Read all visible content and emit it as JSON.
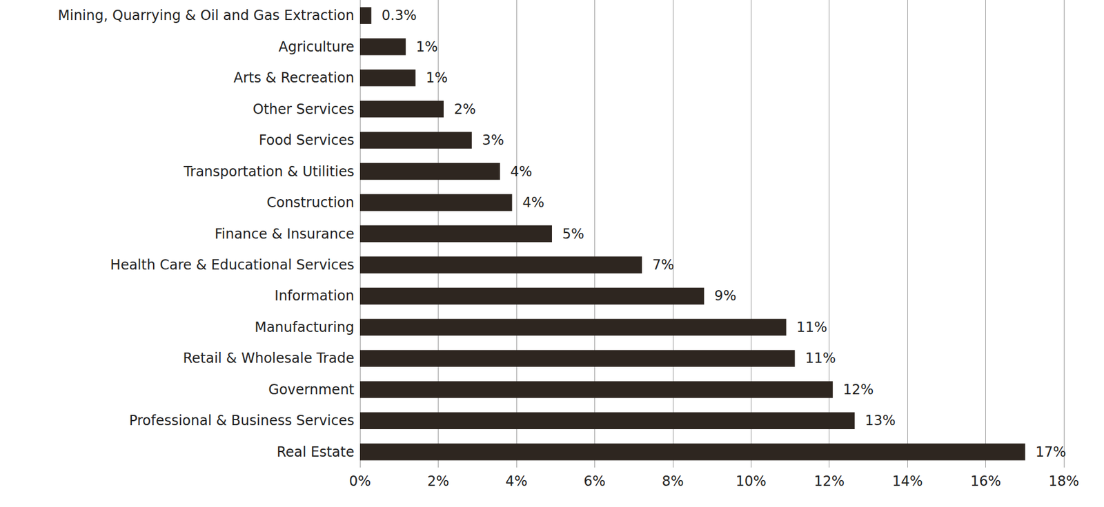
{
  "chart_data": {
    "type": "bar",
    "orientation": "horizontal",
    "categories": [
      "Mining, Quarrying & Oil and Gas Extraction",
      "Agriculture",
      "Arts & Recreation",
      "Other Services",
      "Food Services",
      "Transportation & Utilities",
      "Construction",
      "Finance & Insurance",
      "Health Care & Educational Services",
      "Information",
      "Manufacturing",
      "Retail & Wholesale Trade",
      "Government",
      "Professional & Business Services",
      "Real Estate"
    ],
    "values": [
      0.29,
      1.17,
      1.42,
      2.14,
      2.86,
      3.58,
      3.89,
      4.91,
      7.21,
      8.8,
      10.9,
      11.12,
      12.09,
      12.65,
      17.01
    ],
    "value_labels": [
      "0.3%",
      "1%",
      "1%",
      "2%",
      "3%",
      "4%",
      "4%",
      "5%",
      "7%",
      "9%",
      "11%",
      "11%",
      "12%",
      "13%",
      "17%"
    ],
    "color": "#2e2620",
    "xlim": [
      0,
      18
    ],
    "xticks": [
      {
        "value": 0,
        "label": "0%"
      },
      {
        "value": 2,
        "label": "2%"
      },
      {
        "value": 4,
        "label": "4%"
      },
      {
        "value": 6,
        "label": "6%"
      },
      {
        "value": 8,
        "label": "8%"
      },
      {
        "value": 10,
        "label": "10%"
      },
      {
        "value": 12,
        "label": "12%"
      },
      {
        "value": 14,
        "label": "14%"
      },
      {
        "value": 16,
        "label": "16%"
      },
      {
        "value": 18,
        "label": "18%"
      }
    ],
    "grid": true,
    "data_labels": true
  }
}
